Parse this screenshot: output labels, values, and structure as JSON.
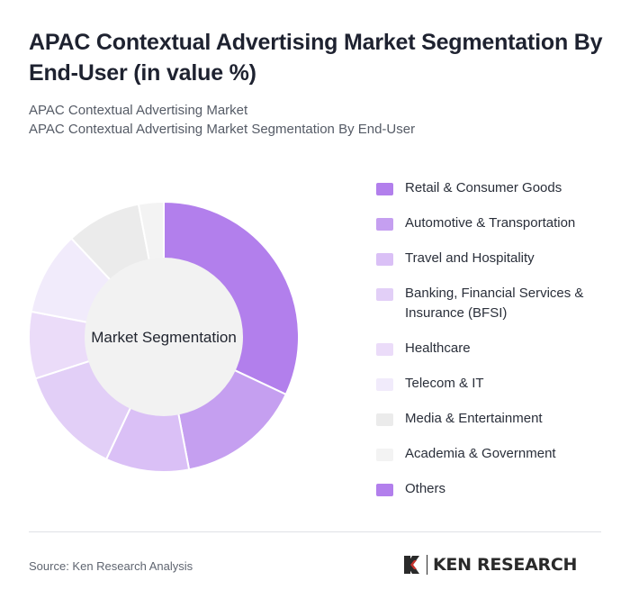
{
  "header": {
    "title": "APAC Contextual Advertising Market Segmentation By End-User (in value %)",
    "subtitle_line1": "APAC Contextual Advertising Market",
    "subtitle_line2": "APAC Contextual Advertising Market Segmentation By End-User"
  },
  "footer": {
    "source": "Source: Ken Research Analysis",
    "logo_text": "KEN RESEARCH"
  },
  "chart_data": {
    "type": "pie",
    "variant": "donut",
    "center_label": "Market Segmentation",
    "categories": [
      "Retail & Consumer Goods",
      "Automotive & Transportation",
      "Travel and Hospitality",
      "Banking, Financial Services & Insurance (BFSI)",
      "Healthcare",
      "Telecom & IT",
      "Media & Entertainment",
      "Academia & Government",
      "Others"
    ],
    "values": [
      32,
      15,
      10,
      13,
      8,
      10,
      9,
      3,
      0
    ],
    "colors": [
      "#b27fec",
      "#c59ff0",
      "#dac0f6",
      "#e2cff7",
      "#ebdcf9",
      "#f1ebfb",
      "#ebebeb",
      "#f3f3f3",
      "#b27fec"
    ],
    "legend_position": "right"
  }
}
